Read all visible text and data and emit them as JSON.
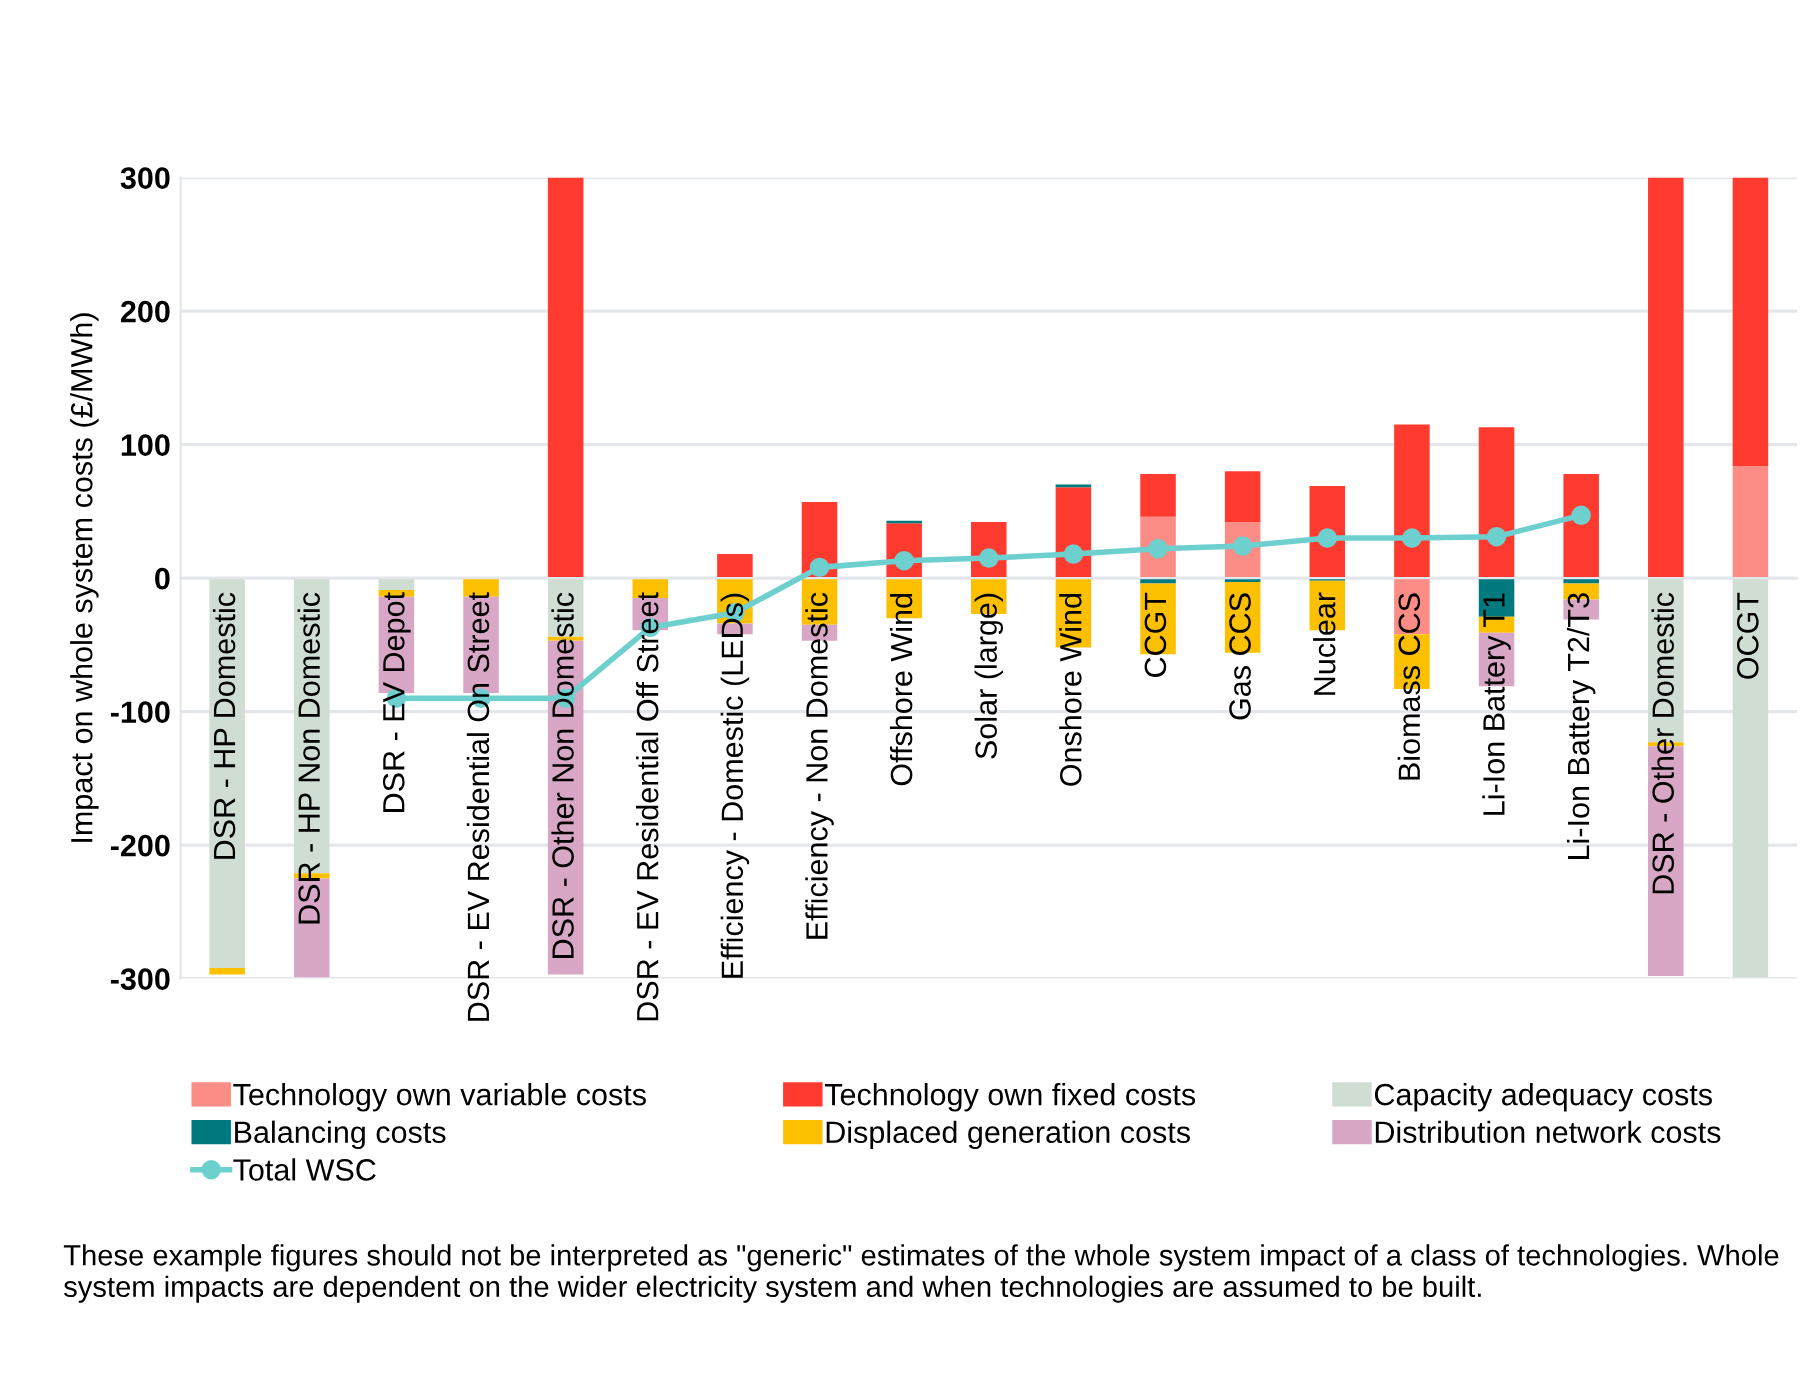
{
  "chart_data": {
    "type": "bar",
    "stacked": true,
    "ylabel": "Impact on whole system costs (£/MWh)",
    "categories": [
      "DSR - HP Domestic",
      "DSR - HP Non Domestic",
      "DSR - EV Depot",
      "DSR - EV Residential On Street",
      "DSR - Other Non Domestic",
      "DSR - EV Residential Off Street",
      "Efficiency - Domestic (LEDs)",
      "Efficiency - Non Domestic",
      "Offshore Wind",
      "Solar (large)",
      "Onshore Wind",
      "CCGT",
      "Gas CCS",
      "Nuclear",
      "Biomass CCS",
      "Li-Ion Battery T1",
      "Li-Ion Battery T2/T3",
      "DSR - Other Domestic",
      "OCGT"
    ],
    "series": [
      {
        "name": "Technology own variable costs",
        "color": "#fc8c86",
        "values": [
          0,
          0,
          0,
          0,
          0,
          0,
          0,
          0,
          0,
          0,
          0,
          46,
          42,
          0,
          -42,
          0,
          0,
          0,
          84
        ]
      },
      {
        "name": "Technology own fixed costs",
        "color": "#ff3b30",
        "values": [
          0,
          0,
          0,
          0,
          300,
          0,
          18,
          57,
          41,
          42,
          68,
          32,
          38,
          69,
          115,
          113,
          78,
          300,
          216
        ]
      },
      {
        "name": "Capacity adequacy costs",
        "color": "#d0ddd2",
        "values": [
          -292,
          -221,
          -9,
          0,
          -44,
          0,
          0,
          0,
          0,
          0,
          0,
          0,
          0,
          0,
          0,
          0,
          0,
          -123,
          -299
        ]
      },
      {
        "name": "Balancing costs",
        "color": "#007a7e",
        "values": [
          0,
          0,
          0,
          0,
          0,
          0,
          0,
          0,
          2,
          0,
          2,
          -4,
          -3,
          -2,
          0,
          -29,
          -4,
          0,
          0
        ]
      },
      {
        "name": "Displaced generation costs",
        "color": "#fcc000",
        "values": [
          -5,
          -4,
          -5,
          -14,
          -3,
          -15,
          -34,
          -35,
          -30,
          -27,
          -52,
          -53,
          -53,
          -37,
          -41,
          -12,
          -12,
          -3,
          0
        ]
      },
      {
        "name": "Distribution network costs",
        "color": "#d8a7c6",
        "values": [
          0,
          -74,
          -72,
          -72,
          -250,
          -24,
          -8,
          -12,
          0,
          0,
          0,
          0,
          0,
          0,
          0,
          -40,
          -15,
          -172,
          0
        ]
      },
      {
        "name": "Total WSC",
        "type": "line",
        "color": "#6dd0cf",
        "marker": "circle",
        "values": [
          null,
          null,
          -90,
          -90,
          -90,
          -37,
          -26,
          8,
          13,
          15,
          18,
          22,
          24,
          30,
          30,
          31,
          47,
          null,
          null
        ]
      }
    ],
    "ylim": [
      -300,
      300
    ],
    "yticks": [
      -300,
      -200,
      -100,
      0,
      100,
      200,
      300
    ],
    "grid": "y",
    "legend": "bottom",
    "annotations": [
      "These example figures should not be interpreted as \"generic\" estimates of the whole system impact of a class of technologies. Whole system impacts are dependent on the wider electricity system and when technologies are assumed to be built."
    ]
  }
}
